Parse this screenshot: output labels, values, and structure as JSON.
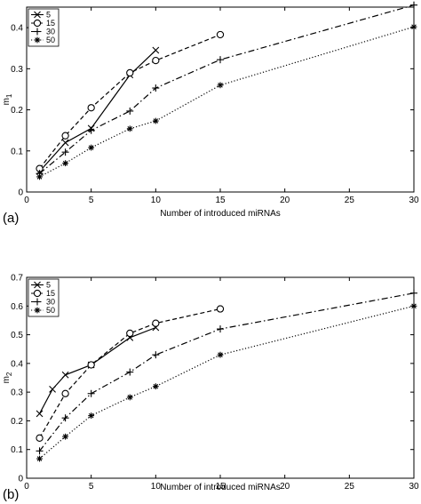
{
  "chart_data": [
    {
      "type": "line",
      "panel_label": "(a)",
      "xlabel": "Number of introduced miRNAs",
      "ylabel": "m",
      "ylabel_sub": "1",
      "xlim": [
        0,
        30
      ],
      "ylim": [
        0,
        0.45
      ],
      "xticks": [
        0,
        5,
        10,
        15,
        20,
        25,
        30
      ],
      "yticks": [
        0,
        0.1,
        0.2,
        0.3,
        0.4
      ],
      "legend_position": "top-left",
      "series": [
        {
          "name": "5",
          "marker": "x",
          "dash": "solid",
          "x": [
            1,
            3,
            5,
            8,
            10
          ],
          "y": [
            0.05,
            0.12,
            0.155,
            0.285,
            0.345
          ]
        },
        {
          "name": "15",
          "marker": "o",
          "dash": "dashed",
          "x": [
            1,
            3,
            5,
            8,
            10,
            15
          ],
          "y": [
            0.057,
            0.137,
            0.205,
            0.29,
            0.32,
            0.383
          ]
        },
        {
          "name": "30",
          "marker": "+",
          "dash": "dashdot",
          "x": [
            1,
            3,
            5,
            8,
            10,
            15,
            30
          ],
          "y": [
            0.045,
            0.097,
            0.15,
            0.197,
            0.253,
            0.322,
            0.455
          ]
        },
        {
          "name": "50",
          "marker": "*",
          "dash": "dotted",
          "x": [
            1,
            3,
            5,
            8,
            10,
            15,
            30
          ],
          "y": [
            0.037,
            0.07,
            0.108,
            0.154,
            0.173,
            0.26,
            0.402
          ]
        }
      ]
    },
    {
      "type": "line",
      "panel_label": "(b)",
      "xlabel": "Number of introduced miRNAs",
      "ylabel": "m",
      "ylabel_sub": "2",
      "xlim": [
        0,
        30
      ],
      "ylim": [
        0,
        0.7
      ],
      "xticks": [
        0,
        5,
        10,
        15,
        20,
        25,
        30
      ],
      "yticks": [
        0,
        0.1,
        0.2,
        0.3,
        0.4,
        0.5,
        0.6,
        0.7
      ],
      "legend_position": "top-left",
      "series": [
        {
          "name": "5",
          "marker": "x",
          "dash": "solid",
          "x": [
            1,
            2,
            3,
            5,
            8,
            10
          ],
          "y": [
            0.225,
            0.31,
            0.36,
            0.395,
            0.49,
            0.525
          ]
        },
        {
          "name": "15",
          "marker": "o",
          "dash": "dashed",
          "x": [
            1,
            3,
            5,
            8,
            10,
            15
          ],
          "y": [
            0.14,
            0.295,
            0.395,
            0.505,
            0.54,
            0.59
          ]
        },
        {
          "name": "30",
          "marker": "+",
          "dash": "dashdot",
          "x": [
            1,
            3,
            5,
            8,
            10,
            15,
            30
          ],
          "y": [
            0.095,
            0.21,
            0.295,
            0.37,
            0.43,
            0.52,
            0.645
          ]
        },
        {
          "name": "50",
          "marker": "*",
          "dash": "dotted",
          "x": [
            1,
            3,
            5,
            8,
            10,
            15,
            30
          ],
          "y": [
            0.068,
            0.145,
            0.218,
            0.282,
            0.32,
            0.43,
            0.6
          ]
        }
      ]
    }
  ]
}
